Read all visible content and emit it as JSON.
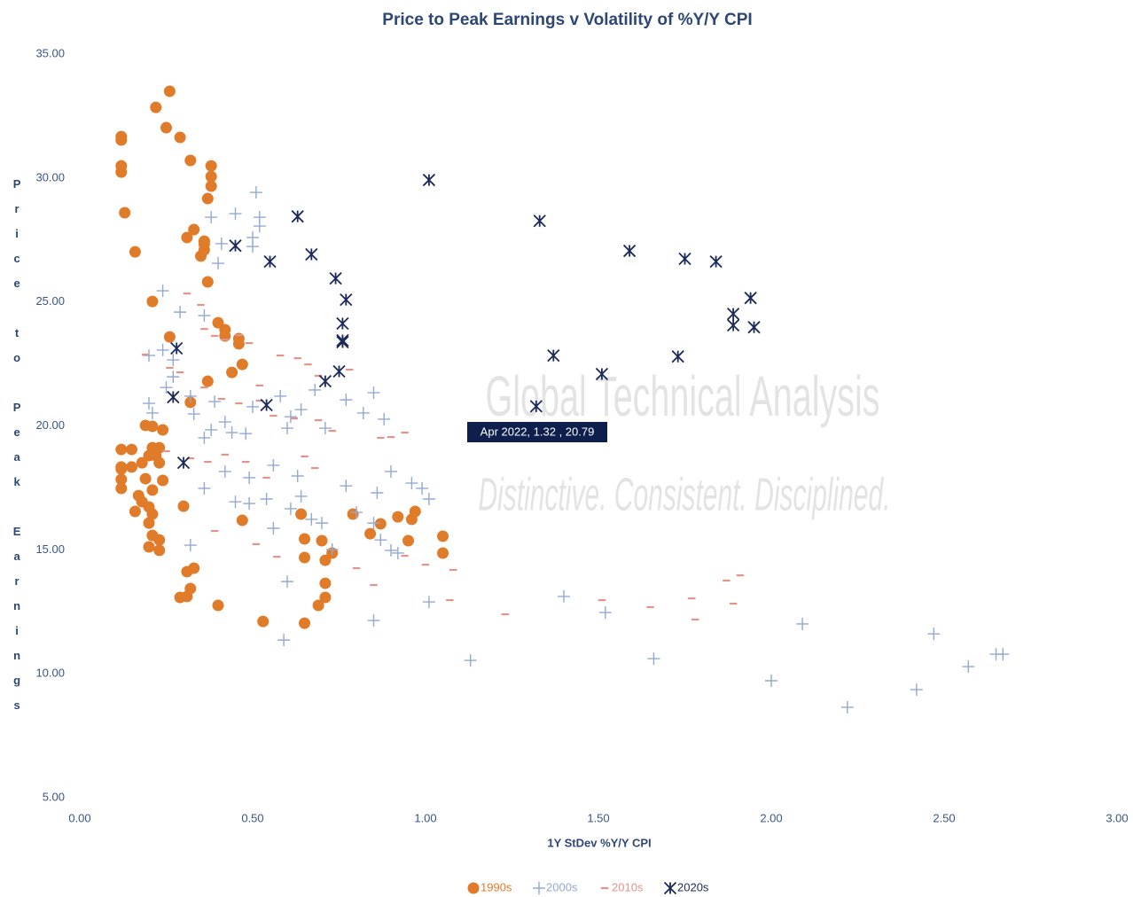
{
  "chart_data": {
    "type": "scatter",
    "title": "Price to Peak Earnings v Volatility of %Y/Y CPI",
    "x_label": "1Y StDev %Y/Y CPI",
    "y_label": "Price to Peak Earnings",
    "xlim": [
      0,
      3
    ],
    "ylim": [
      5,
      35
    ],
    "xticks": [
      {
        "value": 0,
        "label": "0.00"
      },
      {
        "value": 0.5,
        "label": "0.50"
      },
      {
        "value": 1,
        "label": "1.00"
      },
      {
        "value": 1.5,
        "label": "1.50"
      },
      {
        "value": 2,
        "label": "2.00"
      },
      {
        "value": 2.5,
        "label": "2.50"
      },
      {
        "value": 3,
        "label": "3.00"
      }
    ],
    "yticks": [
      {
        "value": 5,
        "label": "5.00"
      },
      {
        "value": 10,
        "label": "10.00"
      },
      {
        "value": 15,
        "label": "15.00"
      },
      {
        "value": 20,
        "label": "20.00"
      },
      {
        "value": 25,
        "label": "25.00"
      },
      {
        "value": 30,
        "label": "30.00"
      },
      {
        "value": 35,
        "label": "35.00"
      }
    ],
    "grid": false,
    "legend": "bottom",
    "annotations": [
      "Apr 2022, 1.32 , 20.79"
    ],
    "watermark": [
      "Global Technical Analysis",
      "Distinctive. Consistent. Disciplined."
    ],
    "series": [
      {
        "name": "1990s",
        "color": "#e07b2a",
        "marker": "circle",
        "x": [
          0.26,
          0.22,
          0.25,
          0.29,
          0.12,
          0.12,
          0.12,
          0.12,
          0.13,
          0.16,
          0.32,
          0.38,
          0.38,
          0.38,
          0.37,
          0.33,
          0.31,
          0.36,
          0.35,
          0.37,
          0.36,
          0.36,
          0.21,
          0.4,
          0.42,
          0.42,
          0.46,
          0.46,
          0.26,
          0.47,
          0.44,
          0.37,
          0.32,
          0.24,
          0.19,
          0.21,
          0.12,
          0.15,
          0.21,
          0.23,
          0.12,
          0.12,
          0.12,
          0.12,
          0.15,
          0.18,
          0.2,
          0.22,
          0.23,
          0.19,
          0.24,
          0.21,
          0.17,
          0.18,
          0.2,
          0.16,
          0.21,
          0.2,
          0.21,
          0.23,
          0.2,
          0.23,
          0.3,
          0.31,
          0.33,
          0.29,
          0.31,
          0.32,
          0.4,
          0.47,
          0.53,
          0.65,
          0.64,
          0.65,
          0.65,
          0.7,
          0.73,
          0.71,
          0.71,
          0.71,
          0.69,
          0.79,
          0.84,
          0.87,
          0.92,
          0.96,
          0.97,
          0.95,
          1.05,
          1.05
        ],
        "values": [
          33.5,
          32.85,
          32.03,
          31.64,
          31.67,
          31.53,
          30.49,
          30.24,
          28.6,
          27.02,
          30.71,
          30.49,
          30.06,
          29.67,
          29.17,
          27.92,
          27.6,
          27.45,
          26.85,
          25.81,
          27.35,
          27.1,
          25.02,
          24.16,
          23.88,
          23.63,
          23.52,
          23.31,
          23.59,
          22.48,
          22.16,
          21.8,
          20.95,
          19.84,
          20.02,
          19.98,
          19.05,
          19.05,
          19.12,
          19.12,
          18.26,
          17.84,
          17.48,
          18.34,
          18.34,
          18.51,
          18.8,
          18.8,
          18.51,
          17.87,
          17.8,
          17.41,
          17.19,
          16.94,
          16.73,
          16.55,
          16.44,
          16.08,
          15.58,
          15.4,
          15.12,
          14.98,
          16.76,
          14.12,
          14.26,
          13.08,
          13.12,
          13.44,
          12.76,
          16.19,
          12.11,
          12.04,
          16.44,
          15.44,
          14.69,
          15.37,
          14.87,
          14.58,
          13.65,
          13.08,
          12.76,
          16.44,
          15.65,
          16.05,
          16.33,
          16.23,
          16.55,
          15.37,
          15.55,
          14.87
        ]
      },
      {
        "name": "2000s",
        "color": "#93a9d4",
        "marker": "plus",
        "x": [
          0.51,
          0.52,
          0.52,
          0.45,
          0.38,
          0.24,
          0.29,
          0.36,
          0.4,
          0.41,
          0.5,
          0.5,
          0.2,
          0.24,
          0.27,
          0.27,
          0.25,
          0.2,
          0.21,
          0.32,
          0.39,
          0.33,
          0.36,
          0.38,
          0.44,
          0.48,
          0.42,
          0.5,
          0.58,
          0.6,
          0.61,
          0.64,
          0.71,
          0.68,
          0.77,
          0.82,
          0.85,
          0.88,
          0.9,
          0.42,
          0.36,
          0.45,
          0.49,
          0.56,
          0.63,
          0.64,
          0.54,
          0.56,
          0.49,
          0.61,
          0.7,
          0.77,
          0.8,
          0.86,
          0.85,
          0.87,
          0.9,
          0.92,
          0.96,
          0.99,
          1.01,
          0.6,
          0.59,
          0.85,
          1.01,
          0.32,
          0.67,
          0.73,
          1.13,
          1.4,
          1.52,
          1.66,
          2.0,
          2.09,
          2.22,
          2.42,
          2.47,
          2.57,
          2.65,
          2.67
        ],
        "values": [
          29.42,
          28.42,
          28.06,
          28.56,
          28.42,
          25.45,
          24.59,
          24.45,
          26.56,
          27.35,
          27.6,
          27.24,
          22.84,
          23.06,
          22.66,
          21.98,
          21.55,
          20.91,
          20.52,
          21.2,
          20.98,
          20.48,
          19.52,
          19.84,
          19.73,
          19.69,
          20.16,
          20.77,
          21.2,
          19.91,
          20.37,
          20.66,
          19.91,
          21.45,
          21.05,
          20.52,
          21.34,
          20.27,
          18.16,
          18.16,
          17.48,
          16.94,
          17.91,
          18.41,
          17.98,
          17.16,
          17.05,
          15.87,
          16.87,
          16.66,
          16.08,
          17.58,
          16.51,
          17.3,
          16.08,
          15.4,
          14.98,
          14.87,
          17.69,
          17.48,
          17.05,
          13.72,
          11.36,
          12.15,
          12.9,
          15.19,
          16.23,
          15.01,
          10.54,
          13.12,
          12.47,
          10.61,
          9.72,
          12.01,
          8.65,
          9.36,
          11.61,
          10.29,
          10.79,
          10.79
        ]
      },
      {
        "name": "2010s",
        "color": "#e0958a",
        "marker": "dash",
        "x": [
          0.31,
          0.35,
          0.19,
          0.26,
          0.29,
          0.36,
          0.39,
          0.42,
          0.46,
          0.49,
          0.58,
          0.63,
          0.66,
          0.69,
          0.78,
          0.36,
          0.41,
          0.46,
          0.52,
          0.52,
          0.56,
          0.62,
          0.69,
          0.73,
          0.87,
          0.9,
          0.94,
          0.25,
          0.32,
          0.37,
          0.42,
          0.48,
          0.54,
          0.65,
          0.68,
          0.39,
          0.51,
          0.57,
          0.8,
          0.85,
          0.94,
          1.0,
          1.08,
          1.07,
          1.23,
          1.51,
          1.65,
          1.77,
          1.78,
          1.87,
          1.91,
          1.89
        ],
        "values": [
          25.34,
          24.88,
          22.88,
          22.34,
          22.16,
          23.91,
          23.63,
          23.48,
          23.66,
          23.34,
          22.84,
          22.73,
          22.48,
          22.02,
          22.27,
          21.55,
          21.09,
          20.91,
          21.02,
          21.63,
          20.41,
          20.3,
          20.23,
          19.8,
          19.52,
          19.55,
          19.73,
          18.98,
          18.69,
          18.55,
          18.84,
          18.55,
          17.91,
          18.77,
          18.3,
          15.76,
          15.23,
          14.72,
          14.26,
          13.58,
          14.76,
          14.4,
          14.19,
          12.97,
          12.4,
          12.97,
          12.69,
          13.04,
          12.19,
          13.76,
          13.97,
          12.83
        ]
      },
      {
        "name": "2020s",
        "color": "#1c2a5a",
        "marker": "asterisk",
        "x": [
          1.01,
          1.33,
          0.63,
          0.45,
          0.55,
          0.67,
          0.74,
          0.77,
          1.59,
          1.75,
          1.84,
          1.94,
          1.89,
          1.89,
          1.95,
          0.76,
          0.76,
          0.76,
          1.37,
          1.73,
          0.71,
          0.75,
          0.28,
          0.27,
          1.51,
          0.54,
          1.32,
          0.3
        ],
        "values": [
          29.92,
          28.27,
          28.45,
          27.27,
          26.63,
          26.92,
          25.95,
          25.09,
          27.06,
          26.74,
          26.63,
          25.16,
          24.52,
          24.06,
          23.98,
          24.13,
          23.45,
          23.38,
          22.84,
          22.8,
          21.8,
          22.2,
          23.13,
          21.16,
          22.09,
          20.84,
          20.79,
          18.51
        ]
      }
    ]
  }
}
